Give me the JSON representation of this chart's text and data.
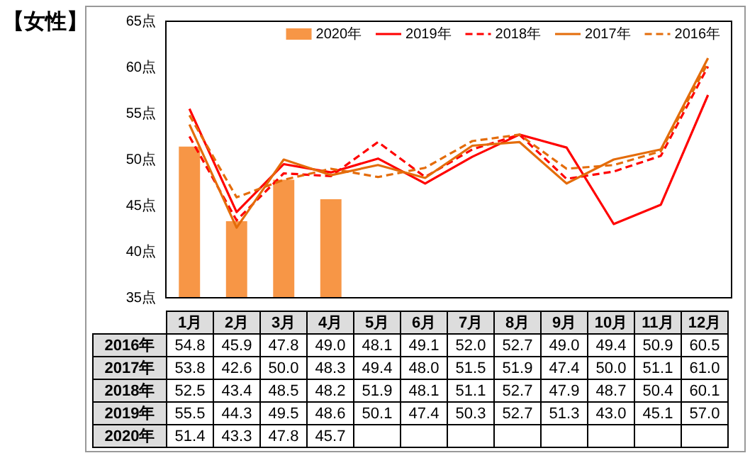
{
  "chart_data": {
    "type": "line",
    "title": "【女性】",
    "categories": [
      "1月",
      "2月",
      "3月",
      "4月",
      "5月",
      "6月",
      "7月",
      "8月",
      "9月",
      "10月",
      "11月",
      "12月"
    ],
    "series": [
      {
        "name": "2016年",
        "color": "#e46c0a",
        "line_style": "dashed",
        "values": [
          54.8,
          45.9,
          47.8,
          49.0,
          48.1,
          49.1,
          52.0,
          52.7,
          49.0,
          49.4,
          50.9,
          60.5
        ],
        "value_labels": [
          "54.8",
          "45.9",
          "47.8",
          "49.0",
          "48.1",
          "49.1",
          "52.0",
          "52.7",
          "49.0",
          "49.4",
          "50.9",
          "60.5"
        ]
      },
      {
        "name": "2017年",
        "color": "#e46c0a",
        "line_style": "solid",
        "values": [
          53.8,
          42.6,
          50.0,
          48.3,
          49.4,
          48.0,
          51.5,
          51.9,
          47.4,
          50.0,
          51.1,
          61.0
        ],
        "value_labels": [
          "53.8",
          "42.6",
          "50.0",
          "48.3",
          "49.4",
          "48.0",
          "51.5",
          "51.9",
          "47.4",
          "50.0",
          "51.1",
          "61.0"
        ]
      },
      {
        "name": "2018年",
        "color": "#ff0000",
        "line_style": "dashed",
        "values": [
          52.5,
          43.4,
          48.5,
          48.2,
          51.9,
          48.1,
          51.1,
          52.7,
          47.9,
          48.7,
          50.4,
          60.1
        ],
        "value_labels": [
          "52.5",
          "43.4",
          "48.5",
          "48.2",
          "51.9",
          "48.1",
          "51.1",
          "52.7",
          "47.9",
          "48.7",
          "50.4",
          "60.1"
        ]
      },
      {
        "name": "2019年",
        "color": "#ff0000",
        "line_style": "solid",
        "values": [
          55.5,
          44.3,
          49.5,
          48.6,
          50.1,
          47.4,
          50.3,
          52.7,
          51.3,
          43.0,
          45.1,
          57.0
        ],
        "value_labels": [
          "55.5",
          "44.3",
          "49.5",
          "48.6",
          "50.1",
          "47.4",
          "50.3",
          "52.7",
          "51.3",
          "43.0",
          "45.1",
          "57.0"
        ]
      },
      {
        "name": "2020年",
        "type": "bar",
        "color": "#f79646",
        "values": [
          51.4,
          43.3,
          47.8,
          45.7,
          null,
          null,
          null,
          null,
          null,
          null,
          null,
          null
        ],
        "value_labels": [
          "51.4",
          "43.3",
          "47.8",
          "45.7",
          null,
          null,
          null,
          null,
          null,
          null,
          null,
          null
        ]
      }
    ],
    "ylim": [
      35,
      65
    ],
    "yticks": [
      {
        "value": 35,
        "label": "35点"
      },
      {
        "value": 40,
        "label": "40点"
      },
      {
        "value": 45,
        "label": "45点"
      },
      {
        "value": 50,
        "label": "50点"
      },
      {
        "value": 55,
        "label": "55点"
      },
      {
        "value": 60,
        "label": "60点"
      },
      {
        "value": 65,
        "label": "65点"
      }
    ],
    "grid": false,
    "legend": "top right",
    "marker": "none",
    "tick_labels": "y"
  }
}
